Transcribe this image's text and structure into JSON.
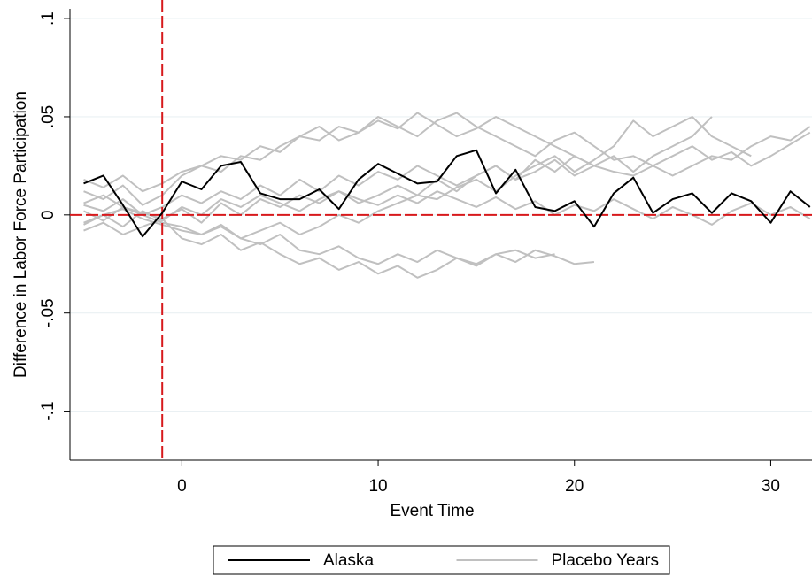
{
  "chart_data": {
    "type": "line",
    "xlabel": "Event Time",
    "ylabel": "Difference in Labor Force Participation",
    "x": [
      -5,
      -4,
      -3,
      -2,
      -1,
      0,
      1,
      2,
      3,
      4,
      5,
      6,
      7,
      8,
      9,
      10,
      11,
      12,
      13,
      14,
      15,
      16,
      17,
      18,
      19,
      20,
      21,
      22,
      23,
      24,
      25,
      26,
      27,
      28,
      29,
      30,
      31,
      32
    ],
    "xlim": [
      -5.7,
      32.1
    ],
    "xticks": [
      0,
      10,
      20,
      30
    ],
    "ylim": [
      -0.125,
      0.105
    ],
    "yticks": [
      {
        "value": -0.1,
        "label": "-.1"
      },
      {
        "value": -0.05,
        "label": "-.05"
      },
      0,
      {
        "value": 0.05,
        "label": ".05"
      },
      {
        "value": 0.1,
        "label": ".1"
      }
    ],
    "grid": true,
    "xline": -1,
    "yline": 0,
    "refline_color": "#d7191c",
    "legend": "bottom",
    "series": [
      {
        "name": "Alaska",
        "color": "#000000",
        "values": [
          0.016,
          0.02,
          0.005,
          -0.011,
          0.001,
          0.017,
          0.013,
          0.025,
          0.027,
          0.011,
          0.008,
          0.008,
          0.013,
          0.003,
          0.018,
          0.026,
          0.021,
          0.016,
          0.017,
          0.03,
          0.033,
          0.011,
          0.023,
          0.004,
          0.002,
          0.007,
          -0.006,
          0.011,
          0.019,
          0.001,
          0.008,
          0.011,
          0.001,
          0.011,
          0.007,
          -0.004,
          0.012,
          0.004
        ]
      },
      {
        "name": "Placebo Years",
        "color": "#c0c0c0",
        "values": [
          [
            -0.005,
            0,
            0.003,
            -0.002,
            -0.005,
            -0.008,
            -0.01,
            -0.006,
            -0.012,
            -0.015,
            -0.01,
            -0.018,
            -0.02,
            -0.016,
            -0.022,
            -0.025,
            -0.02,
            -0.024,
            -0.018,
            -0.022,
            -0.026,
            -0.02,
            -0.024,
            -0.018,
            -0.021,
            -0.025,
            -0.024,
            null,
            null,
            null,
            null,
            null,
            null,
            null,
            null,
            null,
            null,
            null
          ],
          [
            0.012,
            0.008,
            0.015,
            0.005,
            0.01,
            0.02,
            0.025,
            0.022,
            0.03,
            0.028,
            0.035,
            0.04,
            0.038,
            0.045,
            0.042,
            0.05,
            0.045,
            0.04,
            0.048,
            0.052,
            0.045,
            0.04,
            0.035,
            0.03,
            0.038,
            0.042,
            0.035,
            0.028,
            0.03,
            0.025,
            0.02,
            0.025,
            0.03,
            0.028,
            0.035,
            0.04,
            0.038,
            0.045
          ],
          [
            0.005,
            0.002,
            0.008,
            0,
            0.004,
            0.01,
            0.006,
            0.012,
            0.008,
            0.015,
            0.01,
            0.018,
            0.012,
            0.02,
            0.015,
            0.022,
            0.018,
            0.025,
            0.02,
            0.015,
            0.02,
            0.025,
            0.018,
            0.022,
            0.028,
            0.02,
            0.025,
            0.03,
            0.022,
            0.03,
            0.035,
            0.04,
            0.05,
            null,
            null,
            null,
            null,
            null
          ],
          [
            -0.008,
            -0.004,
            -0.01,
            -0.006,
            -0.002,
            -0.012,
            -0.015,
            -0.01,
            -0.018,
            -0.014,
            -0.02,
            -0.025,
            -0.022,
            -0.028,
            -0.024,
            -0.03,
            -0.026,
            -0.032,
            -0.028,
            -0.022,
            -0.025,
            -0.02,
            -0.018,
            -0.022,
            -0.02,
            null,
            null,
            null,
            null,
            null,
            null,
            null,
            null,
            null,
            null,
            null,
            null,
            null
          ],
          [
            0.002,
            -0.003,
            0.004,
            0.001,
            -0.002,
            0.003,
            -0.004,
            0.006,
            0,
            0.008,
            0.004,
            0.01,
            0.006,
            0.012,
            0.008,
            0.005,
            0.01,
            0.006,
            0.012,
            0.008,
            0.004,
            0.009,
            0.003,
            0.007,
            0,
            0.005,
            0.002,
            0.008,
            0.003,
            -0.002,
            0.004,
            0,
            -0.005,
            0.002,
            0.006,
            0,
            0.004,
            -0.002
          ],
          [
            0.018,
            0.014,
            0.02,
            0.012,
            0.016,
            0.022,
            0.025,
            0.03,
            0.028,
            0.035,
            0.032,
            0.04,
            0.045,
            0.038,
            0.042,
            0.048,
            0.044,
            0.052,
            0.046,
            0.04,
            0.044,
            0.05,
            0.045,
            0.04,
            0.035,
            0.03,
            0.025,
            null,
            null,
            null,
            null,
            null,
            null,
            null,
            null,
            null,
            null,
            null
          ],
          [
            -0.004,
            0,
            -0.006,
            0.002,
            -0.003,
            0.004,
            0,
            0.008,
            0.004,
            0.01,
            0.006,
            0.002,
            0.008,
            0.012,
            0.006,
            0.01,
            0.015,
            0.01,
            0.018,
            0.012,
            0.02,
            0.025,
            0.018,
            0.028,
            0.022,
            0.03,
            0.025,
            0.022,
            0.02,
            0.025,
            0.03,
            0.035,
            0.028,
            0.032,
            0.025,
            0.03,
            0.036,
            0.042
          ],
          [
            0.006,
            0.01,
            0.004,
            0,
            -0.004,
            -0.006,
            -0.01,
            -0.005,
            -0.012,
            -0.008,
            -0.004,
            -0.01,
            -0.006,
            0,
            -0.004,
            0.002,
            0.006,
            0.01,
            0.008,
            0.014,
            0.018,
            0.012,
            0.02,
            0.025,
            0.03,
            0.022,
            0.028,
            0.035,
            0.048,
            0.04,
            0.045,
            0.05,
            0.04,
            0.035,
            0.03,
            null,
            null,
            null
          ]
        ]
      }
    ]
  }
}
